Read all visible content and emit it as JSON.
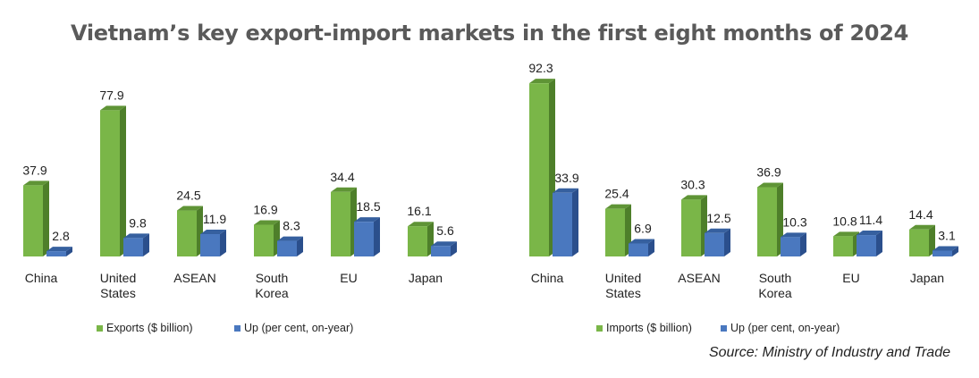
{
  "title": "Vietnam’s key export-import markets in the first eight months of 2024",
  "source": "Source: Ministry of Industry and Trade",
  "colors": {
    "green": "#7ab648",
    "green_dark": "#4e7f2a",
    "green_top": "#5f9436",
    "blue": "#4a78bf",
    "blue_dark": "#2b4f8c",
    "blue_top": "#36609f"
  },
  "chart_data": [
    {
      "type": "bar",
      "categories": [
        "China",
        "United States",
        "ASEAN",
        "South Korea",
        "EU",
        "Japan"
      ],
      "category_lines": [
        [
          "China"
        ],
        [
          "United",
          "States"
        ],
        [
          "ASEAN"
        ],
        [
          "South",
          "Korea"
        ],
        [
          "EU"
        ],
        [
          "Japan"
        ]
      ],
      "series": [
        {
          "name": "Exports ($ billion)",
          "values": [
            37.9,
            77.9,
            24.5,
            16.9,
            34.4,
            16.1
          ],
          "labels": [
            "37.9",
            "77.9",
            "24.5",
            "16.9",
            "34.4",
            "16.1"
          ]
        },
        {
          "name": "Up (per cent, on-year)",
          "values": [
            2.8,
            9.8,
            11.9,
            8.3,
            18.5,
            5.6
          ],
          "labels": [
            "2.8",
            "9.8",
            "11.9",
            "8.3",
            "18.5",
            "5.6"
          ]
        }
      ],
      "bar_style": "3d",
      "legend": "bottom-left",
      "ylim": [
        0,
        80
      ]
    },
    {
      "type": "bar",
      "categories": [
        "China",
        "United States",
        "ASEAN",
        "South Korea",
        "EU",
        "Japan"
      ],
      "category_lines": [
        [
          "China"
        ],
        [
          "United",
          "States"
        ],
        [
          "ASEAN"
        ],
        [
          "South",
          "Korea"
        ],
        [
          "EU"
        ],
        [
          "Japan"
        ]
      ],
      "series": [
        {
          "name": "Imports ($ billion)",
          "values": [
            92.3,
            25.4,
            30.3,
            36.9,
            10.8,
            14.4
          ],
          "labels": [
            "92.3",
            "25.4",
            "30.3",
            "36.9",
            "10.8",
            "14.4"
          ]
        },
        {
          "name": "Up (per cent, on-year)",
          "values": [
            33.9,
            6.9,
            12.5,
            10.3,
            11.4,
            3.1
          ],
          "labels": [
            "33.9",
            "6.9",
            "12.5",
            "10.3",
            "11.4",
            "3.1"
          ]
        }
      ],
      "bar_style": "3d",
      "legend": "bottom-left",
      "ylim": [
        0,
        95
      ]
    }
  ]
}
